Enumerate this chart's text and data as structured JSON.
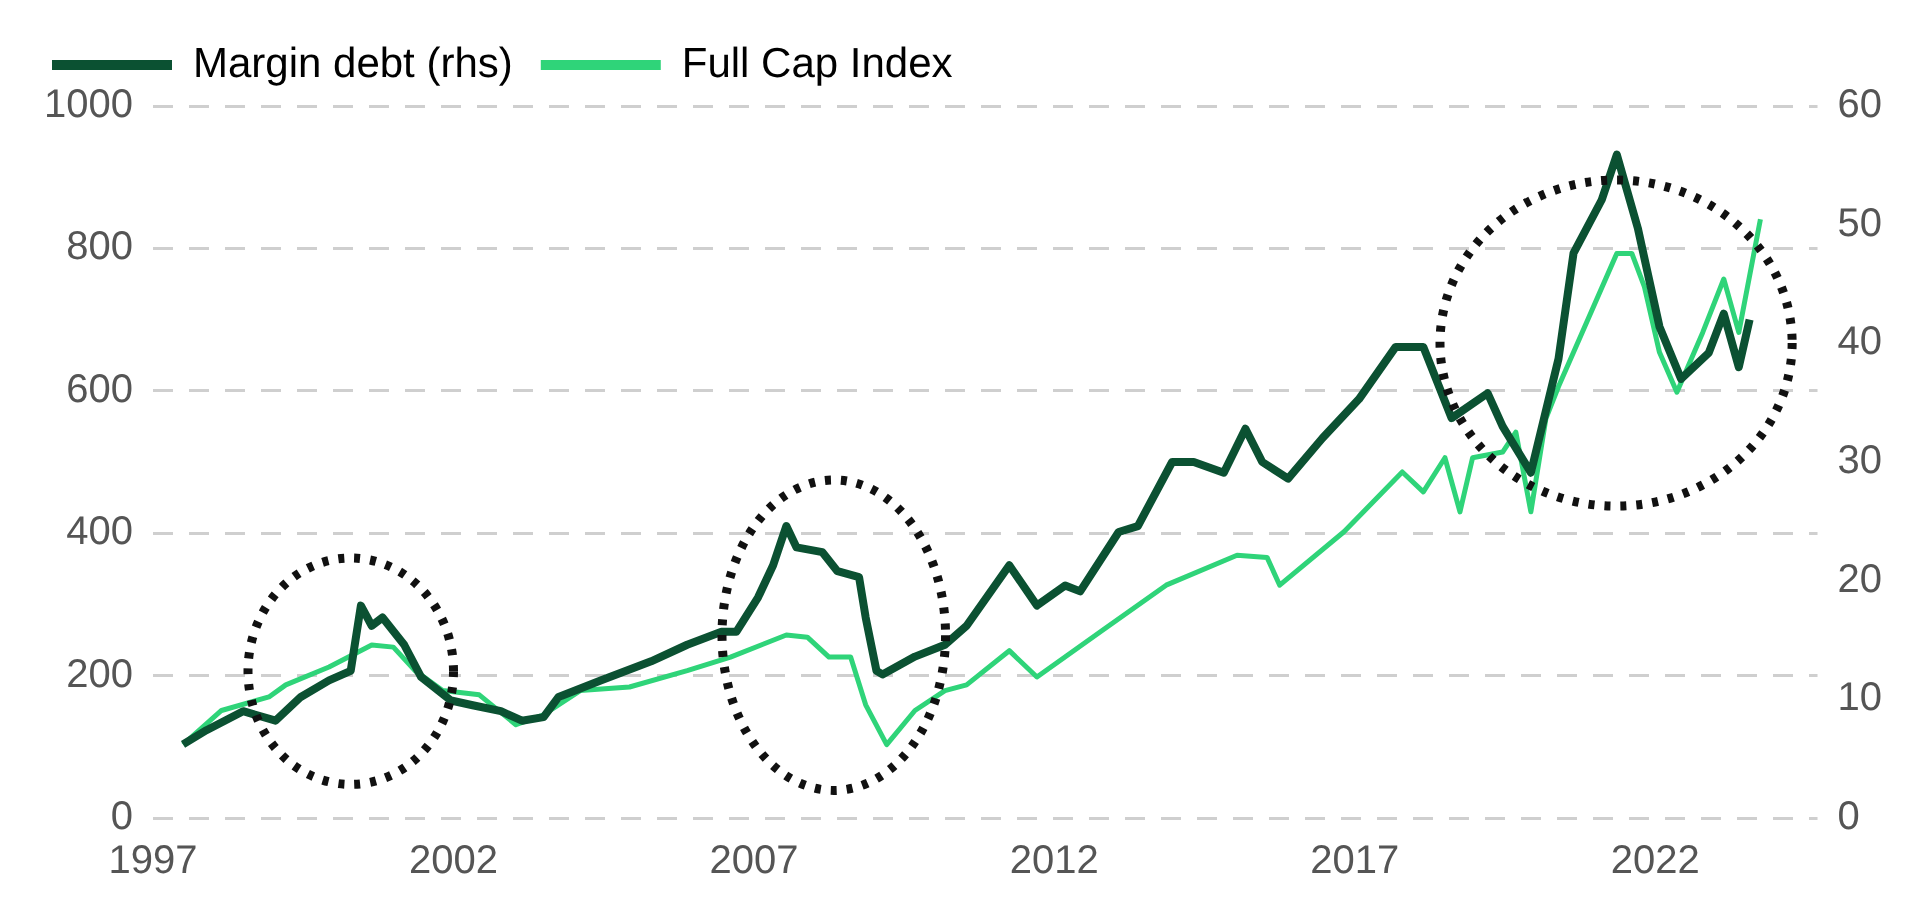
{
  "chart_data": {
    "type": "line",
    "xlim": [
      1997,
      2024.7
    ],
    "xticks": [
      1997,
      2002,
      2007,
      2012,
      2017,
      2022
    ],
    "ylim": [
      0,
      1000
    ],
    "yticks": [
      0,
      200,
      400,
      600,
      800,
      1000
    ],
    "y2lim": [
      0,
      60
    ],
    "y2ticks": [
      0,
      10,
      20,
      30,
      40,
      50,
      60
    ],
    "grid": "y",
    "legend": "top",
    "marker": "none",
    "line_style": "solid",
    "series": [
      {
        "name": "Margin debt (rhs)",
        "color": "#0b5132",
        "axis": "y2",
        "x": [
          1997.5,
          1997.89,
          1998.5,
          1999.04,
          1999.46,
          1999.93,
          2000.29,
          2000.46,
          2000.64,
          2000.82,
          2001.18,
          2001.46,
          2001.96,
          2002.32,
          2002.79,
          2003.14,
          2003.5,
          2003.75,
          2004.46,
          2005.29,
          2005.89,
          2006.46,
          2006.71,
          2007.07,
          2007.32,
          2007.54,
          2007.71,
          2008.14,
          2008.39,
          2008.75,
          2008.86,
          2009.04,
          2009.14,
          2009.68,
          2010.18,
          2010.54,
          2011.25,
          2011.71,
          2012.18,
          2012.43,
          2013.07,
          2013.39,
          2013.96,
          2014.32,
          2014.82,
          2015.18,
          2015.46,
          2015.89,
          2016.46,
          2017.07,
          2017.68,
          2018.14,
          2018.61,
          2019.21,
          2019.46,
          2019.93,
          2020.39,
          2020.64,
          2021.11,
          2021.36,
          2021.71,
          2022.07,
          2022.43,
          2022.89,
          2023.14,
          2023.39,
          2023.57
        ],
        "values": [
          6.2,
          7.4,
          9.0,
          8.2,
          10.2,
          11.6,
          12.4,
          17.9,
          16.2,
          16.9,
          14.6,
          11.9,
          9.9,
          9.5,
          9.0,
          8.2,
          8.5,
          10.2,
          11.6,
          13.2,
          14.6,
          15.7,
          15.7,
          18.6,
          21.3,
          24.6,
          22.8,
          22.4,
          20.8,
          20.3,
          16.9,
          12.4,
          12.1,
          13.6,
          14.6,
          16.2,
          21.3,
          17.9,
          19.6,
          19.1,
          24.1,
          24.6,
          30.0,
          30.0,
          29.1,
          32.8,
          30.0,
          28.6,
          32.0,
          35.3,
          39.7,
          39.7,
          33.7,
          35.8,
          33.0,
          29.1,
          38.7,
          47.6,
          52.1,
          55.9,
          49.7,
          41.4,
          37.0,
          39.2,
          42.5,
          38.0,
          42.0
        ]
      },
      {
        "name": "Full Cap Index",
        "color": "#2fd479",
        "x": [
          1997.5,
          1998.14,
          1998.93,
          1999.21,
          1999.93,
          2000.64,
          2001,
          2001.36,
          2001.82,
          2002.43,
          2003.04,
          2003.5,
          2004.11,
          2004.93,
          2005.89,
          2006.61,
          2007.54,
          2007.89,
          2008.25,
          2008.61,
          2008.86,
          2009.21,
          2009.68,
          2010.18,
          2010.54,
          2011.25,
          2011.71,
          2012.79,
          2013.86,
          2015.04,
          2015.54,
          2015.75,
          2016.82,
          2017.79,
          2018.14,
          2018.5,
          2018.75,
          2018.96,
          2019.46,
          2019.68,
          2019.93,
          2020.18,
          2020.39,
          2020.64,
          2021.36,
          2021.61,
          2021.82,
          2022.07,
          2022.36,
          2022.79,
          2023.14,
          2023.39,
          2023.75
        ],
        "values": [
          103,
          151,
          170,
          187,
          212,
          243,
          240,
          207,
          179,
          173,
          131,
          145,
          179,
          184,
          207,
          226,
          257,
          254,
          226,
          226,
          159,
          103,
          151,
          179,
          187,
          235,
          198,
          263,
          327,
          369,
          366,
          327,
          402,
          486,
          458,
          506,
          430,
          506,
          514,
          542,
          430,
          561,
          606,
          654,
          793,
          793,
          746,
          654,
          598,
          682,
          757,
          682,
          841
        ]
      }
    ]
  }
}
